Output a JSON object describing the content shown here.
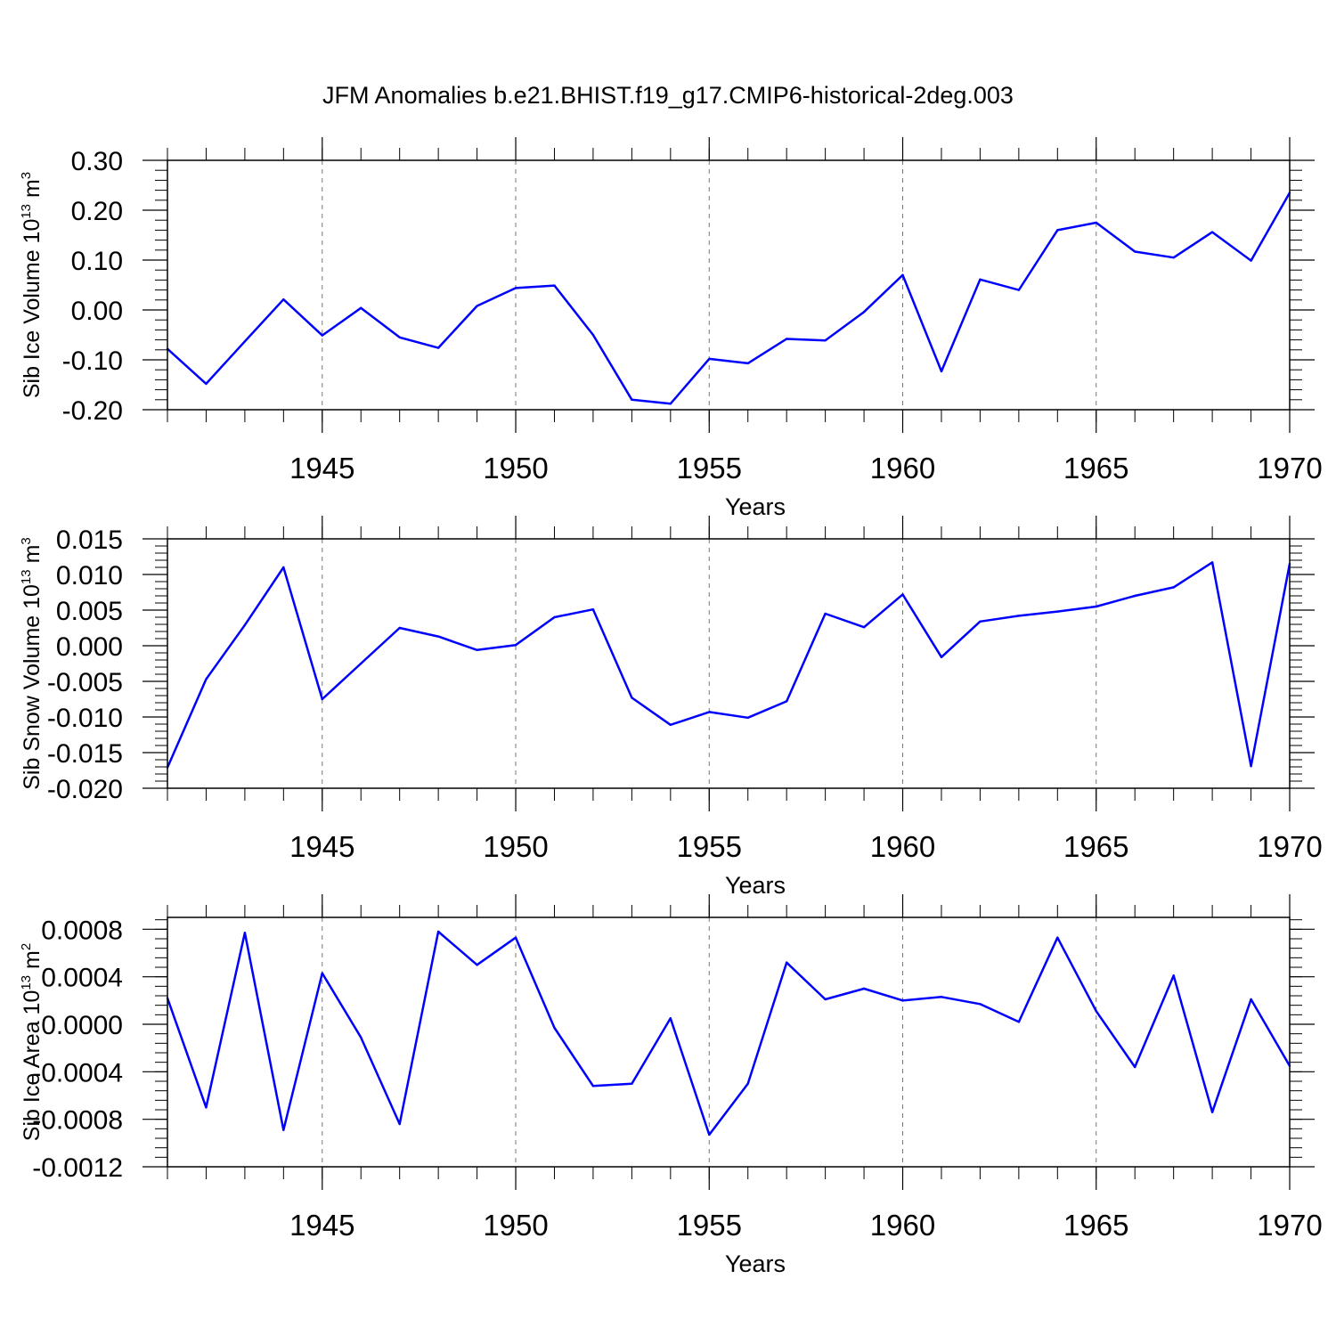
{
  "title": "JFM Anomalies b.e21.BHIST.f19_g17.CMIP6-historical-2deg.003",
  "line_color": "#0000ff",
  "chart_data": [
    {
      "type": "line",
      "ylabel": "Sib Ice Volume 10",
      "ylabel_exp": "13",
      "ylabel_unit": " m",
      "ylabel_unit_exp": "3",
      "xlabel": "Years",
      "xlim": [
        1941,
        1970
      ],
      "ylim": [
        -0.2,
        0.3
      ],
      "xticks": [
        "1945",
        "1950",
        "1955",
        "1960",
        "1965",
        "1970"
      ],
      "yticks": [
        "-0.20",
        "-0.10",
        "0.00",
        "0.10",
        "0.20",
        "0.30"
      ],
      "x": [
        1941,
        1942,
        1943,
        1944,
        1945,
        1946,
        1947,
        1948,
        1949,
        1950,
        1951,
        1952,
        1953,
        1954,
        1955,
        1956,
        1957,
        1958,
        1959,
        1960,
        1961,
        1962,
        1963,
        1964,
        1965,
        1966,
        1967,
        1968,
        1969,
        1970
      ],
      "values": [
        -0.078,
        -0.148,
        -0.063,
        0.021,
        -0.051,
        0.004,
        -0.055,
        -0.076,
        0.008,
        0.044,
        0.049,
        -0.05,
        -0.18,
        -0.188,
        -0.098,
        -0.107,
        -0.058,
        -0.061,
        -0.004,
        0.07,
        -0.123,
        0.061,
        0.04,
        0.16,
        0.175,
        0.117,
        0.105,
        0.156,
        0.099,
        0.235
      ]
    },
    {
      "type": "line",
      "ylabel": "Sib Snow Volume 10",
      "ylabel_exp": "13",
      "ylabel_unit": " m",
      "ylabel_unit_exp": "3",
      "xlabel": "Years",
      "xlim": [
        1941,
        1970
      ],
      "ylim": [
        -0.02,
        0.015
      ],
      "xticks": [
        "1945",
        "1950",
        "1955",
        "1960",
        "1965",
        "1970"
      ],
      "yticks": [
        "-0.020",
        "-0.015",
        "-0.010",
        "-0.005",
        "0.000",
        "0.005",
        "0.010",
        "0.015"
      ],
      "x": [
        1941,
        1942,
        1943,
        1944,
        1945,
        1946,
        1947,
        1948,
        1949,
        1950,
        1951,
        1952,
        1953,
        1954,
        1955,
        1956,
        1957,
        1958,
        1959,
        1960,
        1961,
        1962,
        1963,
        1964,
        1965,
        1966,
        1967,
        1968,
        1969,
        1970
      ],
      "values": [
        -0.0171,
        -0.0047,
        0.0029,
        0.011,
        -0.0075,
        -0.0025,
        0.0025,
        0.0013,
        -0.0006,
        0.0001,
        0.004,
        0.0051,
        -0.0073,
        -0.0111,
        -0.0093,
        -0.0101,
        -0.0078,
        0.0045,
        0.0026,
        0.0072,
        -0.0016,
        0.0034,
        0.0042,
        0.0048,
        0.0055,
        0.007,
        0.0082,
        0.0117,
        -0.0169,
        0.0115
      ]
    },
    {
      "type": "line",
      "ylabel": "Sib Ice Area 10",
      "ylabel_exp": "13",
      "ylabel_unit": " m",
      "ylabel_unit_exp": "2",
      "xlabel": "Years",
      "xlim": [
        1941,
        1970
      ],
      "ylim": [
        -0.0012,
        0.0009
      ],
      "xticks": [
        "1945",
        "1950",
        "1955",
        "1960",
        "1965",
        "1970"
      ],
      "yticks": [
        "-0.0012",
        "-0.0008",
        "-0.0004",
        "0.0000",
        "0.0004",
        "0.0008"
      ],
      "x": [
        1941,
        1942,
        1943,
        1944,
        1945,
        1946,
        1947,
        1948,
        1949,
        1950,
        1951,
        1952,
        1953,
        1954,
        1955,
        1956,
        1957,
        1958,
        1959,
        1960,
        1961,
        1962,
        1963,
        1964,
        1965,
        1966,
        1967,
        1968,
        1969,
        1970
      ],
      "values": [
        0.00022,
        -0.0007,
        0.00077,
        -0.00089,
        0.00043,
        -0.00011,
        -0.00084,
        0.00078,
        0.0005,
        0.00073,
        -3e-05,
        -0.00052,
        -0.0005,
        5e-05,
        -0.00093,
        -0.0005,
        0.00052,
        0.00021,
        0.0003,
        0.0002,
        0.00023,
        0.00017,
        2e-05,
        0.00073,
        0.00011,
        -0.00036,
        0.00041,
        -0.00074,
        0.00021,
        -0.00035
      ]
    }
  ]
}
